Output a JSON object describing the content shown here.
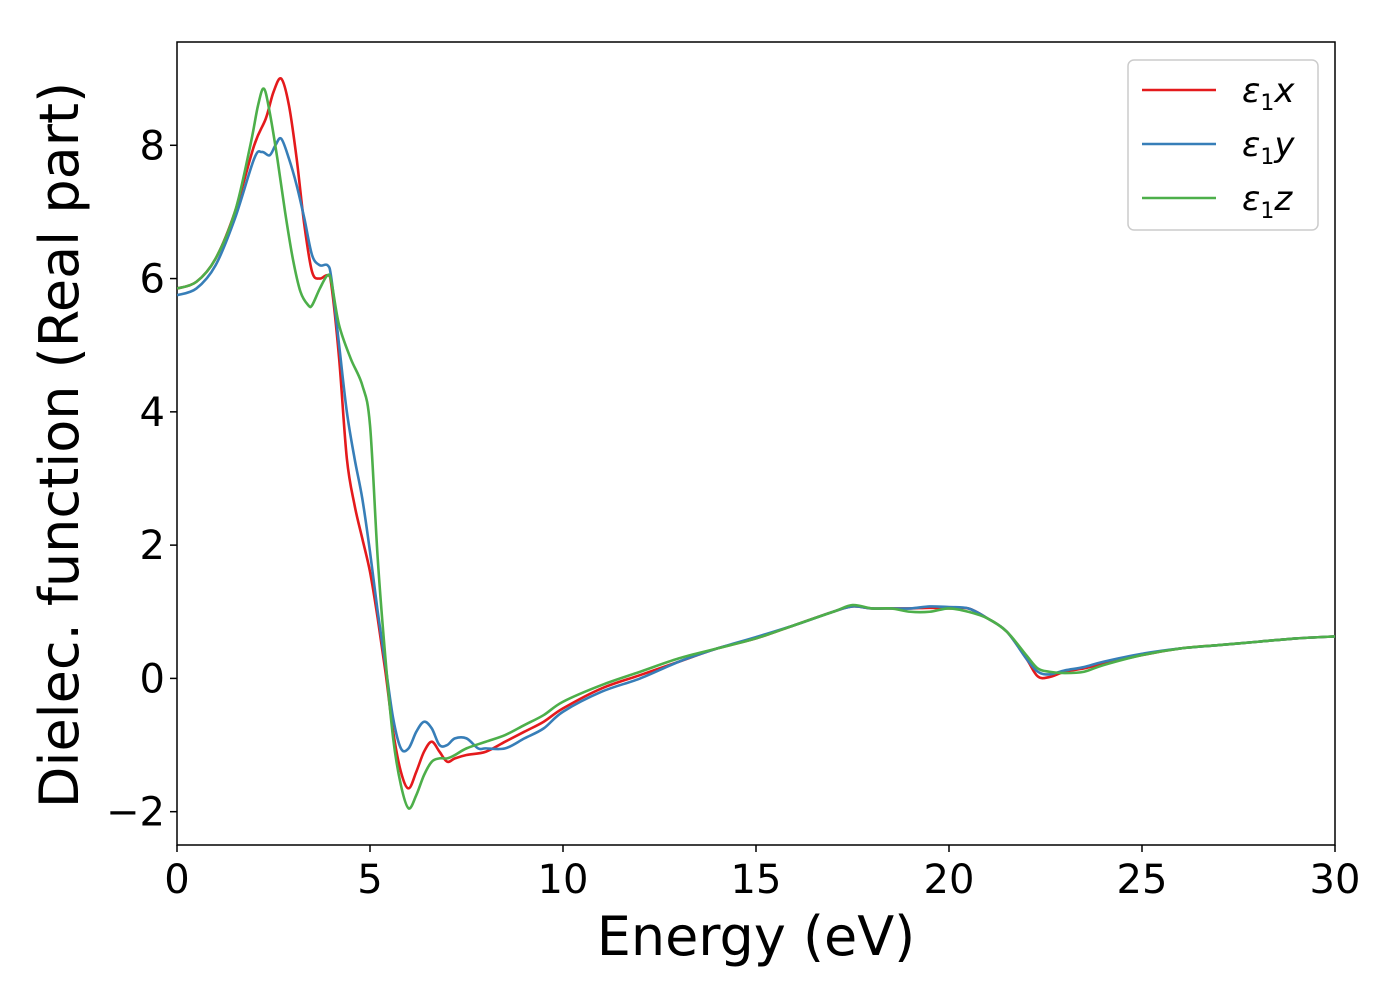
{
  "chart_data": {
    "type": "line",
    "title": "",
    "xlabel": "Energy (eV)",
    "ylabel": "Dielec. function (Real part)",
    "xlim": [
      0,
      30
    ],
    "ylim": [
      -2.5,
      9.55
    ],
    "xticks": [
      0,
      5,
      10,
      15,
      20,
      25,
      30
    ],
    "yticks": [
      -2,
      0,
      2,
      4,
      6,
      8
    ],
    "grid": false,
    "legend_position": "top-right",
    "series": [
      {
        "name": "ε1x",
        "legend_base": "ε",
        "legend_sub": "1",
        "legend_suffix": "x",
        "color": "#e41a1c",
        "x": [
          0,
          0.5,
          1.0,
          1.5,
          2.0,
          2.3,
          2.5,
          2.7,
          2.9,
          3.1,
          3.3,
          3.5,
          3.7,
          3.9,
          4.0,
          4.2,
          4.4,
          4.6,
          4.8,
          5.0,
          5.2,
          5.4,
          5.6,
          5.8,
          6.0,
          6.2,
          6.4,
          6.6,
          6.8,
          7.0,
          7.2,
          7.5,
          8.0,
          8.5,
          9.0,
          9.5,
          10,
          11,
          12,
          13,
          14,
          15,
          16,
          17,
          17.5,
          18,
          18.5,
          19,
          19.5,
          20,
          20.5,
          21,
          21.5,
          22,
          22.3,
          22.6,
          23,
          23.5,
          24,
          25,
          26,
          27,
          28,
          29,
          30
        ],
        "y": [
          5.85,
          5.95,
          6.3,
          7.0,
          8.0,
          8.4,
          8.8,
          9.0,
          8.6,
          7.8,
          6.8,
          6.1,
          6.0,
          6.05,
          5.9,
          4.8,
          3.3,
          2.6,
          2.1,
          1.6,
          0.9,
          0.1,
          -0.8,
          -1.4,
          -1.65,
          -1.4,
          -1.1,
          -0.95,
          -1.1,
          -1.25,
          -1.2,
          -1.15,
          -1.1,
          -0.95,
          -0.8,
          -0.65,
          -0.45,
          -0.15,
          0.05,
          0.25,
          0.45,
          0.6,
          0.8,
          1.0,
          1.08,
          1.05,
          1.05,
          1.05,
          1.06,
          1.05,
          1.05,
          0.9,
          0.7,
          0.3,
          0.03,
          0.02,
          0.1,
          0.15,
          0.22,
          0.35,
          0.45,
          0.5,
          0.55,
          0.6,
          0.63
        ]
      },
      {
        "name": "ε1y",
        "legend_base": "ε",
        "legend_sub": "1",
        "legend_suffix": "y",
        "color": "#377eb8",
        "x": [
          0,
          0.5,
          1.0,
          1.5,
          2.0,
          2.2,
          2.4,
          2.55,
          2.7,
          2.9,
          3.1,
          3.3,
          3.5,
          3.7,
          3.9,
          4.0,
          4.2,
          4.4,
          4.6,
          4.8,
          5.0,
          5.2,
          5.4,
          5.6,
          5.8,
          6.0,
          6.2,
          6.4,
          6.6,
          6.8,
          7.0,
          7.2,
          7.5,
          7.8,
          8.0,
          8.5,
          9.0,
          9.5,
          10,
          11,
          12,
          13,
          14,
          15,
          16,
          17,
          17.5,
          18,
          18.5,
          19,
          19.5,
          20,
          20.5,
          21,
          21.5,
          22,
          22.3,
          22.6,
          23,
          23.5,
          24,
          25,
          26,
          27,
          28,
          29,
          30
        ],
        "y": [
          5.75,
          5.85,
          6.2,
          6.9,
          7.8,
          7.9,
          7.85,
          8.0,
          8.1,
          7.8,
          7.4,
          6.9,
          6.35,
          6.2,
          6.2,
          6.0,
          5.0,
          4.0,
          3.3,
          2.7,
          1.9,
          1.0,
          0.2,
          -0.6,
          -1.05,
          -1.05,
          -0.8,
          -0.65,
          -0.75,
          -1.0,
          -1.0,
          -0.9,
          -0.9,
          -1.05,
          -1.05,
          -1.05,
          -0.9,
          -0.75,
          -0.5,
          -0.2,
          0.0,
          0.25,
          0.45,
          0.62,
          0.8,
          1.0,
          1.08,
          1.05,
          1.05,
          1.05,
          1.08,
          1.07,
          1.05,
          0.9,
          0.7,
          0.3,
          0.1,
          0.06,
          0.12,
          0.17,
          0.25,
          0.37,
          0.45,
          0.5,
          0.55,
          0.6,
          0.63
        ]
      },
      {
        "name": "ε1z",
        "legend_base": "ε",
        "legend_sub": "1",
        "legend_suffix": "z",
        "color": "#4daf4a",
        "x": [
          0,
          0.5,
          1.0,
          1.5,
          1.9,
          2.1,
          2.25,
          2.4,
          2.6,
          2.8,
          3.0,
          3.2,
          3.4,
          3.5,
          3.7,
          3.9,
          4.0,
          4.2,
          4.5,
          4.8,
          5.0,
          5.2,
          5.4,
          5.6,
          5.8,
          6.0,
          6.2,
          6.4,
          6.6,
          6.8,
          7.0,
          7.2,
          7.5,
          8.0,
          8.5,
          9.0,
          9.5,
          10,
          11,
          12,
          13,
          14,
          15,
          16,
          17,
          17.5,
          18,
          18.5,
          19,
          19.5,
          20,
          20.5,
          21,
          21.5,
          22,
          22.3,
          22.6,
          23,
          23.5,
          24,
          25,
          26,
          27,
          28,
          29,
          30
        ],
        "y": [
          5.85,
          5.95,
          6.3,
          7.0,
          8.0,
          8.6,
          8.85,
          8.5,
          7.8,
          7.0,
          6.3,
          5.8,
          5.6,
          5.6,
          5.85,
          6.05,
          5.95,
          5.3,
          4.8,
          4.4,
          3.8,
          1.8,
          0.3,
          -0.9,
          -1.6,
          -1.95,
          -1.75,
          -1.45,
          -1.25,
          -1.2,
          -1.2,
          -1.15,
          -1.05,
          -0.95,
          -0.85,
          -0.7,
          -0.55,
          -0.35,
          -0.1,
          0.1,
          0.3,
          0.45,
          0.6,
          0.8,
          1.0,
          1.1,
          1.05,
          1.05,
          1.0,
          1.0,
          1.05,
          1.0,
          0.9,
          0.7,
          0.35,
          0.15,
          0.1,
          0.08,
          0.1,
          0.2,
          0.35,
          0.45,
          0.5,
          0.55,
          0.6,
          0.63
        ]
      }
    ]
  }
}
